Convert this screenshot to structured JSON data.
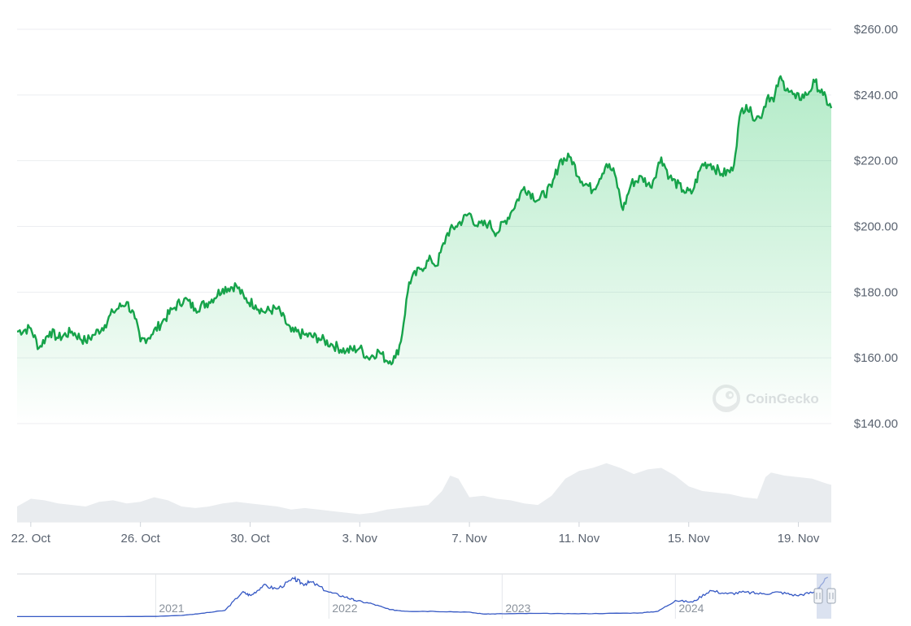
{
  "chart_data": [
    {
      "type": "area",
      "currency": "$",
      "ylim": [
        140,
        260
      ],
      "yticks": [
        "$260.00",
        "$240.00",
        "$220.00",
        "$200.00",
        "$180.00",
        "$160.00",
        "$140.00"
      ],
      "ytick_values": [
        260,
        240,
        220,
        200,
        180,
        160,
        140
      ],
      "xticks": [
        "22. Oct",
        "26. Oct",
        "30. Oct",
        "3. Nov",
        "7. Nov",
        "11. Nov",
        "15. Nov",
        "19. Nov"
      ],
      "x_range_days": [
        21.5,
        51.2
      ],
      "xtick_days": [
        22,
        26,
        30,
        34,
        38,
        42,
        46,
        50
      ],
      "line_color": "#16a34a",
      "fill_color": "#22c55e",
      "price_series": {
        "days": [
          21.5,
          22.0,
          22.3,
          22.7,
          23.0,
          23.5,
          24.0,
          24.3,
          24.7,
          25.0,
          25.5,
          25.8,
          26.0,
          26.4,
          26.8,
          27.2,
          27.6,
          28.0,
          28.5,
          29.0,
          29.5,
          29.8,
          30.2,
          30.5,
          31.0,
          31.5,
          32.0,
          32.5,
          33.0,
          33.5,
          34.0,
          34.3,
          34.7,
          35.0,
          35.3,
          35.5,
          35.8,
          36.2,
          36.6,
          36.8,
          37.2,
          37.5,
          38.0,
          38.3,
          38.7,
          39.0,
          39.5,
          40.0,
          40.5,
          41.0,
          41.3,
          41.7,
          42.0,
          42.5,
          43.0,
          43.3,
          43.6,
          43.9,
          44.3,
          44.6,
          45.0,
          45.3,
          45.8,
          46.1,
          46.5,
          46.8,
          47.2,
          47.6,
          47.9,
          48.1,
          48.3,
          48.6,
          48.9,
          49.1,
          49.3,
          49.6,
          49.9,
          50.3,
          50.6,
          50.9,
          51.2
        ],
        "values": [
          168,
          169,
          163,
          168,
          166,
          168,
          165,
          167,
          170,
          174,
          177,
          172,
          165,
          167,
          171,
          175,
          178,
          175,
          177,
          181,
          182,
          178,
          176,
          174,
          175,
          168,
          167,
          166,
          164,
          162,
          163,
          160,
          162,
          159,
          160,
          165,
          183,
          187,
          190,
          188,
          198,
          200,
          204,
          200,
          201,
          198,
          204,
          212,
          208,
          212,
          220,
          221,
          215,
          211,
          219,
          216,
          205,
          213,
          215,
          212,
          221,
          215,
          211,
          210,
          219,
          219,
          216,
          217,
          235,
          237,
          234,
          233,
          240,
          238,
          245,
          242,
          239,
          240,
          244,
          240,
          236
        ],
        "name": ""
      },
      "volume_series": {
        "days": [
          21.5,
          22.0,
          22.5,
          23.0,
          23.5,
          24.0,
          24.5,
          25.0,
          25.5,
          26.0,
          26.5,
          27.0,
          27.5,
          28.0,
          28.5,
          29.0,
          29.5,
          30.0,
          30.5,
          31.0,
          31.5,
          32.0,
          32.5,
          33.0,
          33.5,
          34.0,
          34.5,
          35.0,
          35.5,
          36.0,
          36.5,
          37.0,
          37.3,
          37.6,
          38.0,
          38.5,
          39.0,
          39.5,
          40.0,
          40.5,
          41.0,
          41.5,
          42.0,
          42.5,
          43.0,
          43.5,
          44.0,
          44.5,
          45.0,
          45.5,
          46.0,
          46.5,
          47.0,
          47.5,
          48.0,
          48.5,
          48.8,
          49.0,
          49.5,
          50.0,
          50.5,
          51.0,
          51.2
        ],
        "values": [
          0.2,
          0.3,
          0.28,
          0.24,
          0.22,
          0.2,
          0.26,
          0.28,
          0.24,
          0.26,
          0.32,
          0.28,
          0.2,
          0.18,
          0.2,
          0.24,
          0.26,
          0.24,
          0.22,
          0.2,
          0.16,
          0.18,
          0.16,
          0.14,
          0.12,
          0.1,
          0.12,
          0.16,
          0.18,
          0.2,
          0.22,
          0.4,
          0.6,
          0.56,
          0.32,
          0.34,
          0.3,
          0.28,
          0.24,
          0.22,
          0.34,
          0.56,
          0.66,
          0.7,
          0.76,
          0.7,
          0.62,
          0.68,
          0.7,
          0.6,
          0.46,
          0.4,
          0.38,
          0.36,
          0.32,
          0.3,
          0.58,
          0.64,
          0.6,
          0.58,
          0.56,
          0.5,
          0.48
        ]
      }
    },
    {
      "type": "line",
      "role": "navigator",
      "xticks": [
        "2021",
        "2022",
        "2023",
        "2024"
      ],
      "xtick_years": [
        2021,
        2022,
        2023,
        2024
      ],
      "x_range_years": [
        2020.2,
        2024.9
      ],
      "line_color": "#3558c4",
      "series": {
        "years": [
          2020.2,
          2020.5,
          2020.8,
          2021.0,
          2021.15,
          2021.25,
          2021.4,
          2021.5,
          2021.55,
          2021.62,
          2021.7,
          2021.8,
          2021.85,
          2021.9,
          2022.0,
          2022.1,
          2022.15,
          2022.25,
          2022.35,
          2022.45,
          2022.6,
          2022.8,
          2022.9,
          2023.0,
          2023.2,
          2023.4,
          2023.6,
          2023.8,
          2023.9,
          2024.0,
          2024.1,
          2024.2,
          2024.3,
          2024.4,
          2024.5,
          2024.6,
          2024.7,
          2024.8,
          2024.88
        ],
        "values": [
          3,
          3,
          3,
          4,
          10,
          20,
          40,
          150,
          130,
          190,
          170,
          230,
          200,
          210,
          150,
          120,
          100,
          80,
          45,
          35,
          35,
          30,
          18,
          20,
          22,
          20,
          22,
          25,
          35,
          100,
          90,
          160,
          140,
          150,
          140,
          150,
          130,
          150,
          240
        ]
      }
    }
  ],
  "watermark": {
    "brand": "CoinGecko",
    "icon": "gecko-logo-icon"
  },
  "navigator": {
    "handle_left_icon": "drag-handle-icon",
    "handle_right_icon": "drag-handle-icon"
  }
}
